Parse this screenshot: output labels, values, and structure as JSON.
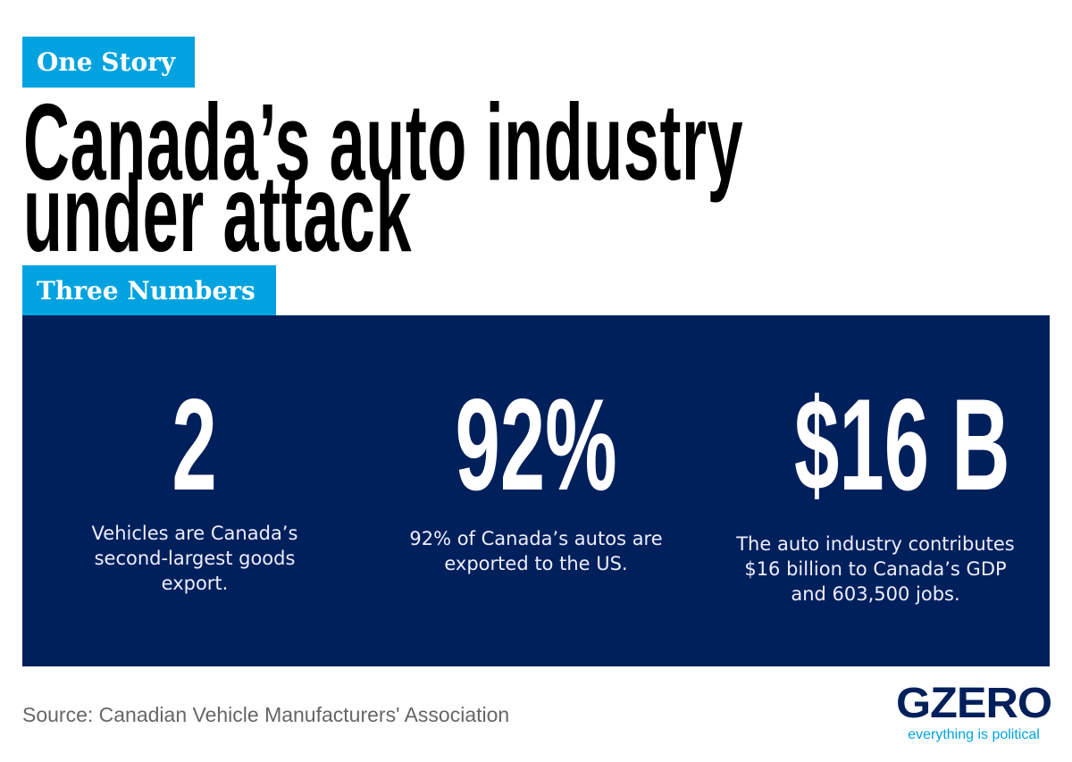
{
  "header": {
    "section_tag": "One Story",
    "title_line1": "Canada’s auto industry",
    "title_line2": "under attack",
    "numbers_tag": "Three Numbers"
  },
  "stats": [
    {
      "value": "2",
      "description": "Vehicles are Canada’s second-largest goods export."
    },
    {
      "value": "92%",
      "description": "92% of Canada’s autos are exported to the US."
    },
    {
      "value": "$16 B",
      "description": "The auto industry contributes $16 billion to Canada’s GDP and 603,500 jobs."
    }
  ],
  "footer": {
    "source": "Source: Canadian Vehicle Manufacturers' Association",
    "logo": "GZERO",
    "tagline": "everything is political"
  },
  "colors": {
    "accent": "#00a3e0",
    "navy": "#00205b"
  }
}
